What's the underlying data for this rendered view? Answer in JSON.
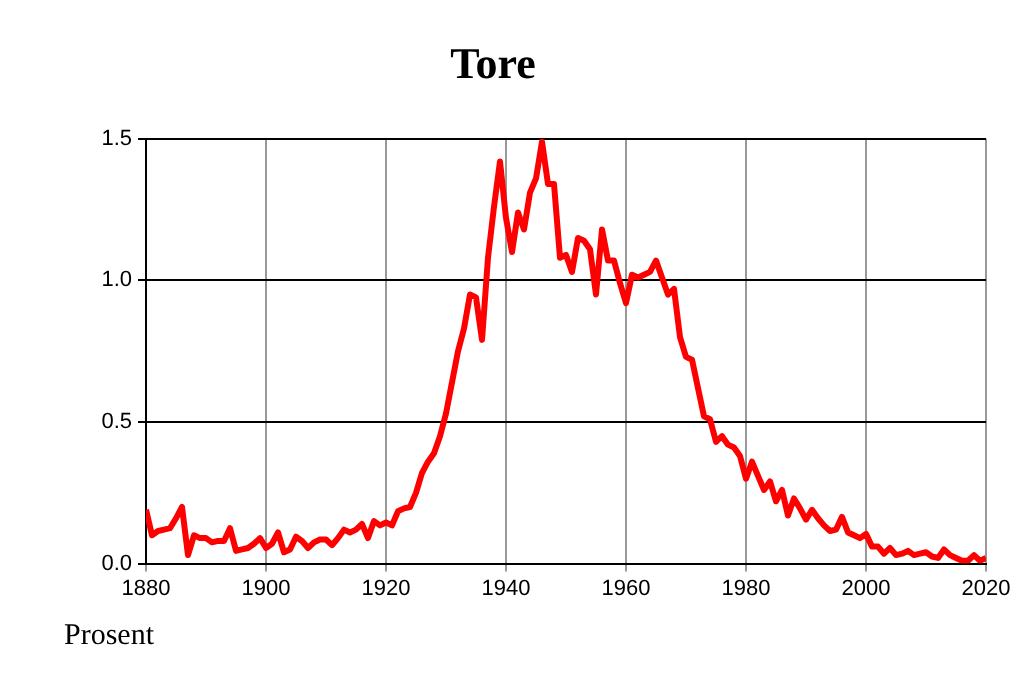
{
  "chart_data": {
    "type": "line",
    "title": "Tore",
    "ylabel": "Prosent",
    "x": [
      1880,
      1881,
      1882,
      1883,
      1884,
      1885,
      1886,
      1887,
      1888,
      1889,
      1890,
      1891,
      1892,
      1893,
      1894,
      1895,
      1896,
      1897,
      1898,
      1899,
      1900,
      1901,
      1902,
      1903,
      1904,
      1905,
      1906,
      1907,
      1908,
      1909,
      1910,
      1911,
      1912,
      1913,
      1914,
      1915,
      1916,
      1917,
      1918,
      1919,
      1920,
      1921,
      1922,
      1923,
      1924,
      1925,
      1926,
      1927,
      1928,
      1929,
      1930,
      1931,
      1932,
      1933,
      1934,
      1935,
      1936,
      1937,
      1938,
      1939,
      1940,
      1941,
      1942,
      1943,
      1944,
      1945,
      1946,
      1947,
      1948,
      1949,
      1950,
      1951,
      1952,
      1953,
      1954,
      1955,
      1956,
      1957,
      1958,
      1959,
      1960,
      1961,
      1962,
      1963,
      1964,
      1965,
      1966,
      1967,
      1968,
      1969,
      1970,
      1971,
      1972,
      1973,
      1974,
      1975,
      1976,
      1977,
      1978,
      1979,
      1980,
      1981,
      1982,
      1983,
      1984,
      1985,
      1986,
      1987,
      1988,
      1989,
      1990,
      1991,
      1992,
      1993,
      1994,
      1995,
      1996,
      1997,
      1998,
      1999,
      2000,
      2001,
      2002,
      2003,
      2004,
      2005,
      2006,
      2007,
      2008,
      2009,
      2010,
      2011,
      2012,
      2013,
      2014,
      2015,
      2016,
      2017,
      2018,
      2019,
      2020
    ],
    "series": [
      {
        "color": "#ff0000",
        "values": [
          0.19,
          0.1,
          0.115,
          0.12,
          0.125,
          0.16,
          0.2,
          0.03,
          0.1,
          0.09,
          0.09,
          0.075,
          0.08,
          0.08,
          0.125,
          0.045,
          0.05,
          0.055,
          0.07,
          0.09,
          0.055,
          0.07,
          0.11,
          0.04,
          0.05,
          0.095,
          0.08,
          0.055,
          0.075,
          0.085,
          0.085,
          0.065,
          0.09,
          0.12,
          0.11,
          0.12,
          0.14,
          0.09,
          0.15,
          0.135,
          0.145,
          0.135,
          0.185,
          0.195,
          0.2,
          0.25,
          0.32,
          0.36,
          0.39,
          0.45,
          0.53,
          0.64,
          0.75,
          0.83,
          0.95,
          0.94,
          0.79,
          1.08,
          1.26,
          1.42,
          1.22,
          1.1,
          1.24,
          1.18,
          1.31,
          1.36,
          1.49,
          1.34,
          1.34,
          1.08,
          1.09,
          1.03,
          1.15,
          1.14,
          1.11,
          0.95,
          1.18,
          1.07,
          1.07,
          0.99,
          0.92,
          1.02,
          1.01,
          1.02,
          1.03,
          1.07,
          1.01,
          0.95,
          0.97,
          0.8,
          0.73,
          0.72,
          0.62,
          0.52,
          0.51,
          0.43,
          0.45,
          0.42,
          0.41,
          0.38,
          0.3,
          0.36,
          0.31,
          0.26,
          0.29,
          0.22,
          0.26,
          0.17,
          0.23,
          0.195,
          0.155,
          0.19,
          0.16,
          0.135,
          0.115,
          0.12,
          0.165,
          0.11,
          0.1,
          0.09,
          0.105,
          0.06,
          0.06,
          0.035,
          0.055,
          0.03,
          0.035,
          0.045,
          0.03,
          0.035,
          0.04,
          0.025,
          0.02,
          0.05,
          0.03,
          0.02,
          0.01,
          0.01,
          0.03,
          0.01,
          0.02
        ]
      }
    ],
    "xlim": [
      1880,
      2020
    ],
    "xticks": [
      1880,
      1900,
      1920,
      1940,
      1960,
      1980,
      2000,
      2020
    ],
    "ylim": [
      0,
      1.5
    ],
    "yticks": [
      {
        "value": 0,
        "label": "0.0"
      },
      {
        "value": 0.5,
        "label": "0.5"
      },
      {
        "value": 1,
        "label": "1.0"
      },
      {
        "value": 1.5,
        "label": "1.5"
      }
    ],
    "grid": true,
    "legend": false,
    "marker": "none",
    "line_style": "solid"
  }
}
